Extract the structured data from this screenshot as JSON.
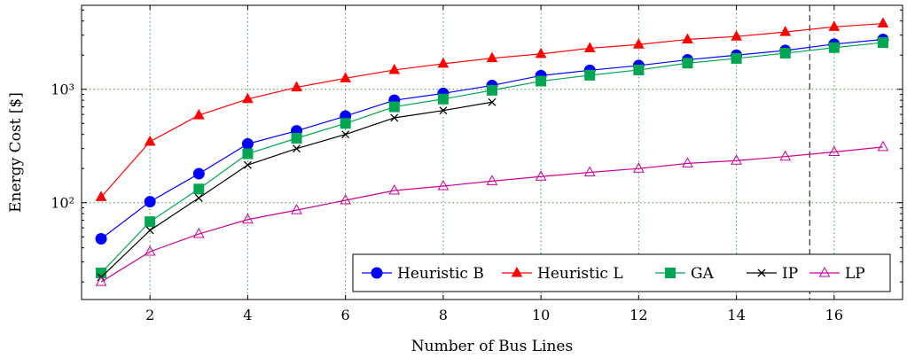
{
  "chart_data": {
    "type": "line",
    "title": "",
    "xlabel": "Number of Bus Lines",
    "ylabel": "Energy Cost [$]",
    "xlim": [
      0.6,
      17.4
    ],
    "ylim": [
      14,
      5500
    ],
    "yscale": "log",
    "grid": true,
    "legend_position": "bottom-right",
    "x_ticks": [
      2,
      4,
      6,
      8,
      10,
      12,
      14,
      16
    ],
    "x_tick_labels": [
      "2",
      "4",
      "6",
      "8",
      "10",
      "12",
      "14",
      "16"
    ],
    "y_ticks": [
      100,
      1000
    ],
    "y_tick_labels": [
      "10²",
      "10³"
    ],
    "vline": 15.5,
    "series": [
      {
        "name": "Heuristic B",
        "color": "#0000ff",
        "marker": "circle",
        "x": [
          1,
          2,
          3,
          4,
          5,
          6,
          7,
          8,
          9,
          10,
          11,
          12,
          13,
          14,
          15,
          16,
          17
        ],
        "values": [
          48,
          102,
          180,
          330,
          430,
          580,
          800,
          920,
          1080,
          1320,
          1470,
          1620,
          1820,
          2000,
          2200,
          2500,
          2750
        ]
      },
      {
        "name": "Heuristic L",
        "color": "#ff0000",
        "marker": "triangle",
        "x": [
          1,
          2,
          3,
          4,
          5,
          6,
          7,
          8,
          9,
          10,
          11,
          12,
          13,
          14,
          15,
          16,
          17
        ],
        "values": [
          112,
          345,
          590,
          820,
          1040,
          1250,
          1480,
          1680,
          1880,
          2050,
          2300,
          2480,
          2750,
          2920,
          3200,
          3550,
          3800
        ]
      },
      {
        "name": "GA",
        "color": "#00a651",
        "marker": "square",
        "x": [
          1,
          2,
          3,
          4,
          5,
          6,
          7,
          8,
          9,
          10,
          11,
          12,
          13,
          14,
          15,
          16,
          17
        ],
        "values": [
          24,
          68,
          132,
          270,
          370,
          500,
          700,
          820,
          980,
          1180,
          1330,
          1480,
          1700,
          1870,
          2080,
          2330,
          2580
        ]
      },
      {
        "name": "IP",
        "color": "#000000",
        "marker": "x",
        "x": [
          1,
          2,
          3,
          4,
          5,
          6,
          7,
          8,
          9
        ],
        "values": [
          22,
          57,
          110,
          215,
          300,
          400,
          560,
          650,
          770
        ]
      },
      {
        "name": "LP",
        "color": "#cc0099",
        "marker": "triangle-open",
        "x": [
          1,
          2,
          3,
          4,
          5,
          6,
          7,
          8,
          9,
          10,
          11,
          12,
          13,
          14,
          15,
          16,
          17
        ],
        "values": [
          20,
          37,
          53,
          71,
          86,
          105,
          128,
          140,
          155,
          170,
          185,
          200,
          222,
          235,
          255,
          280,
          310
        ]
      }
    ]
  }
}
